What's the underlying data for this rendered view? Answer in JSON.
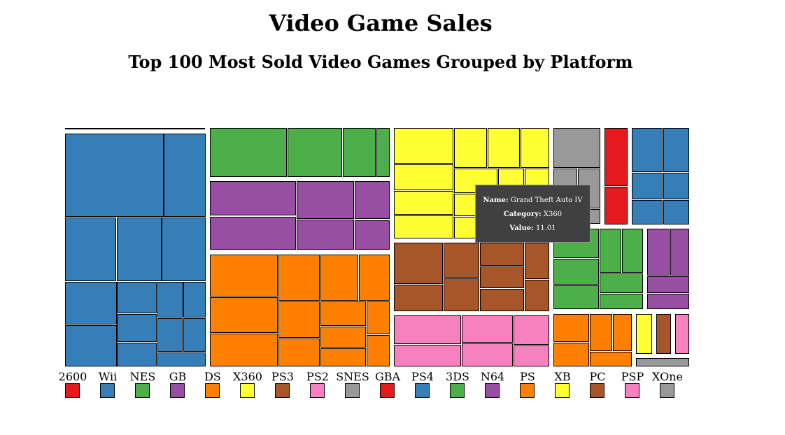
{
  "header": {
    "title": "Video Game Sales",
    "subtitle": "Top 100 Most Sold Video Games Grouped by Platform"
  },
  "tooltip": {
    "name_label": "Name:",
    "name_value": "Grand Theft Auto IV",
    "category_label": "Category:",
    "category_value": "X360",
    "value_label": "Value:",
    "value_value": "11.01"
  },
  "chart_data": {
    "type": "treemap",
    "title": "Video Game Sales",
    "subtitle": "Top 100 Most Sold Video Games Grouped by Platform",
    "legend_position": "bottom",
    "legend": [
      {
        "label": "2600",
        "color": "#e41a1c"
      },
      {
        "label": "Wii",
        "color": "#377eb8"
      },
      {
        "label": "NES",
        "color": "#4daf4a"
      },
      {
        "label": "GB",
        "color": "#984ea3"
      },
      {
        "label": "DS",
        "color": "#ff7f00"
      },
      {
        "label": "X360",
        "color": "#ffff33"
      },
      {
        "label": "PS3",
        "color": "#a65628"
      },
      {
        "label": "PS2",
        "color": "#f781bf"
      },
      {
        "label": "SNES",
        "color": "#999999"
      },
      {
        "label": "GBA",
        "color": "#e41a1c"
      },
      {
        "label": "PS4",
        "color": "#377eb8"
      },
      {
        "label": "3DS",
        "color": "#4daf4a"
      },
      {
        "label": "N64",
        "color": "#984ea3"
      },
      {
        "label": "PS",
        "color": "#ff7f00"
      },
      {
        "label": "XB",
        "color": "#ffff33"
      },
      {
        "label": "PC",
        "color": "#a65628"
      },
      {
        "label": "PSP",
        "color": "#f781bf"
      },
      {
        "label": "XOne",
        "color": "#999999"
      }
    ],
    "highlighted": {
      "name": "Grand Theft Auto IV",
      "category": "X360",
      "value": 11.01
    }
  }
}
